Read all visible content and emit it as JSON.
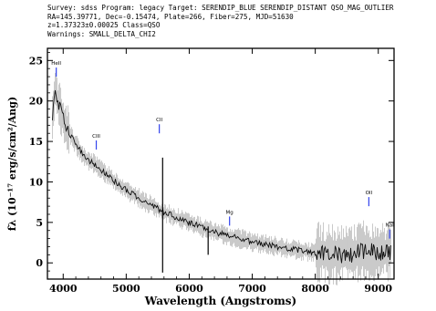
{
  "header": {
    "line1": "Survey: sdss  Program: legacy  Target: SERENDIP_BLUE SERENDIP_DISTANT QSO_MAG_OUTLIER",
    "line2": "RA=145.39771, Dec=-0.15474, Plate=266, Fiber=275, MJD=51630",
    "line3": "z=1.37323±0.00025  Class=QSO",
    "line4": "Warnings: SMALL_DELTA_CHI2"
  },
  "chart_data": {
    "type": "line",
    "title": "",
    "xlabel": "Wavelength (Angstroms)",
    "ylabel": "fλ (10⁻¹⁷ erg/s/cm²/Ang)",
    "xlim": [
      3750,
      9250
    ],
    "ylim": [
      -2,
      26.5
    ],
    "x_ticks": [
      4000,
      5000,
      6000,
      7000,
      8000,
      9000
    ],
    "y_ticks": [
      0,
      5,
      10,
      15,
      20,
      25
    ],
    "grid": false,
    "series": [
      {
        "x": [
          3830,
          3850,
          3870,
          3900,
          3950,
          4000,
          4100,
          4200,
          4300,
          4400,
          4500,
          4600,
          4800,
          5000,
          5200,
          5400,
          5600,
          5800,
          6000,
          6200,
          6400,
          6600,
          6800,
          7000,
          7200,
          7400,
          7600,
          7800,
          8000,
          8200,
          8400,
          8600,
          8800,
          9000,
          9200
        ],
        "y": [
          17.5,
          20.0,
          21.5,
          20.5,
          19.0,
          17.8,
          16.0,
          14.7,
          13.5,
          12.6,
          12.2,
          11.5,
          10.2,
          9.0,
          8.0,
          7.1,
          6.3,
          5.6,
          5.0,
          4.4,
          3.8,
          3.4,
          3.0,
          2.6,
          2.3,
          2.0,
          1.7,
          1.5,
          1.3,
          1.1,
          1.0,
          1.0,
          1.6,
          1.3,
          1.4
        ]
      }
    ],
    "line_labels": [
      {
        "label": "HeII",
        "x": 3890,
        "y": 23.0
      },
      {
        "label": "CIII",
        "x": 4525,
        "y": 14.0
      },
      {
        "label": "CII",
        "x": 5525,
        "y": 16.0
      },
      {
        "label": "Mg",
        "x": 6640,
        "y": 4.6
      },
      {
        "label": "OII",
        "x": 8850,
        "y": 7.0
      },
      {
        "label": "NaI",
        "x": 9180,
        "y": 3.0
      }
    ]
  }
}
